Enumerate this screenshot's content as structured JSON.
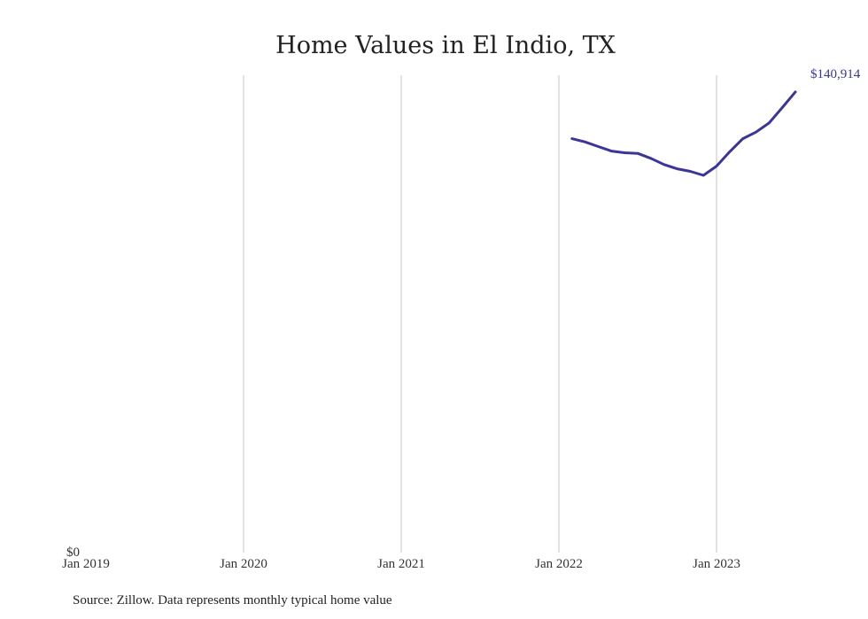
{
  "chart_data": {
    "type": "line",
    "title": "Home Values in El Indio, TX",
    "xlabel": "",
    "ylabel": "",
    "x_tick_labels": [
      "Jan 2019",
      "Jan 2020",
      "Jan 2021",
      "Jan 2022",
      "Jan 2023"
    ],
    "y_tick_labels": [
      "$0"
    ],
    "ylim": [
      0,
      146000
    ],
    "grid": "vertical",
    "series": [
      {
        "color": "#3a3699",
        "x": [
          "2022-02",
          "2022-03",
          "2022-04",
          "2022-05",
          "2022-06",
          "2022-07",
          "2022-08",
          "2022-09",
          "2022-10",
          "2022-11",
          "2022-12",
          "2023-01",
          "2023-02",
          "2023-03",
          "2023-04",
          "2023-05",
          "2023-06",
          "2023-07"
        ],
        "values": [
          126600,
          125600,
          124200,
          122800,
          122300,
          122100,
          120600,
          118700,
          117400,
          116600,
          115400,
          118200,
          122600,
          126600,
          128600,
          131400,
          136100,
          140914
        ]
      }
    ],
    "end_label": "$140,914"
  },
  "source_note": "Source: Zillow. Data represents monthly typical home value"
}
